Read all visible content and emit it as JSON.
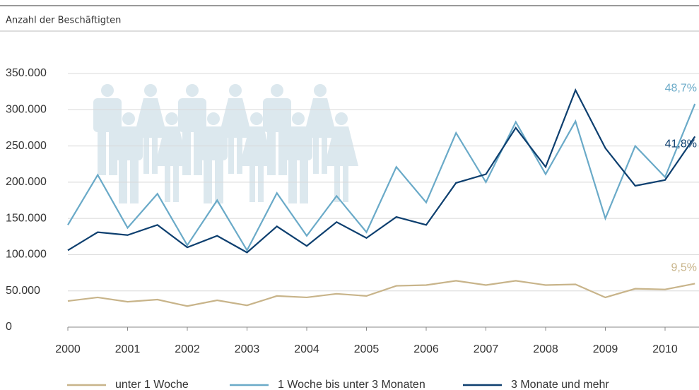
{
  "chart_data": {
    "type": "line",
    "subtitle": "Anzahl der Beschäftigten",
    "x": [
      2000,
      2000.5,
      2001,
      2001.5,
      2002,
      2002.5,
      2003,
      2003.5,
      2004,
      2004.5,
      2005,
      2005.5,
      2006,
      2006.5,
      2007,
      2007.5,
      2008,
      2008.5,
      2009,
      2009.5,
      2010,
      2010.5
    ],
    "xlim": [
      2000,
      2010.57
    ],
    "xticks": [
      2000,
      2001,
      2002,
      2003,
      2004,
      2005,
      2006,
      2007,
      2008,
      2009,
      2010
    ],
    "ylim": [
      0,
      350000
    ],
    "yticks": [
      0,
      {
        "value": 50000,
        "label": "50.000"
      },
      {
        "value": 100000,
        "label": "100.000"
      },
      {
        "value": 150000,
        "label": "150.000"
      },
      {
        "value": 200000,
        "label": "200.000"
      },
      {
        "value": 250000,
        "label": "250.000"
      },
      {
        "value": 300000,
        "label": "300.000"
      },
      {
        "value": 350000,
        "label": "350.000"
      }
    ],
    "grid": true,
    "legend": "bottom",
    "series": [
      {
        "name": "unter 1 Woche",
        "color": "#c8b48a",
        "end_label": "9,5%",
        "values": [
          36000,
          41000,
          35000,
          38000,
          29000,
          37000,
          30000,
          43000,
          41000,
          46000,
          43000,
          57000,
          58000,
          64000,
          58000,
          64000,
          58000,
          59000,
          41000,
          53000,
          52000,
          60000
        ]
      },
      {
        "name": "1 Woche bis unter 3 Monaten",
        "color": "#6aaac8",
        "end_label": "48,7%",
        "values": [
          141000,
          210000,
          137000,
          184000,
          113000,
          175000,
          106000,
          185000,
          126000,
          181000,
          131000,
          221000,
          172000,
          268000,
          200000,
          283000,
          211000,
          284000,
          150000,
          250000,
          207000,
          308000
        ]
      },
      {
        "name": "3 Monate und mehr",
        "color": "#0d3f6f",
        "end_label": "41,8%",
        "values": [
          106000,
          131000,
          127000,
          141000,
          110000,
          126000,
          103000,
          139000,
          112000,
          145000,
          123000,
          152000,
          141000,
          199000,
          211000,
          275000,
          221000,
          327000,
          247000,
          195000,
          203000,
          263000
        ]
      }
    ]
  }
}
